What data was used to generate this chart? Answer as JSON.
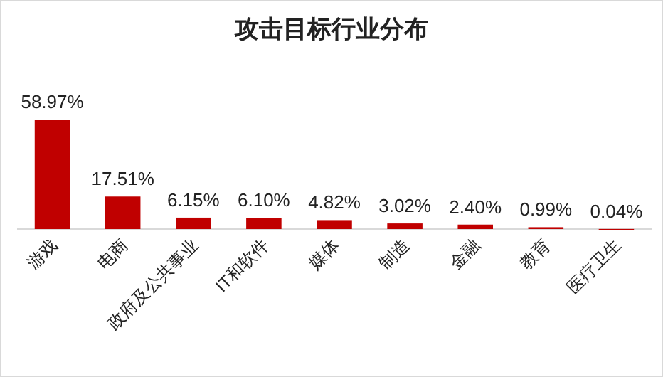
{
  "chart_data": {
    "type": "bar",
    "title": "攻击目标行业分布",
    "categories": [
      "游戏",
      "电商",
      "政府及公共事业",
      "IT和软件",
      "媒体",
      "制造",
      "金融",
      "教育",
      "医疗卫生"
    ],
    "values": [
      58.97,
      17.51,
      6.15,
      6.1,
      4.82,
      3.02,
      2.4,
      0.99,
      0.04
    ],
    "value_labels": [
      "58.97%",
      "17.51%",
      "6.15%",
      "6.10%",
      "4.82%",
      "3.02%",
      "2.40%",
      "0.99%",
      "0.04%"
    ],
    "color": "#c00000"
  }
}
